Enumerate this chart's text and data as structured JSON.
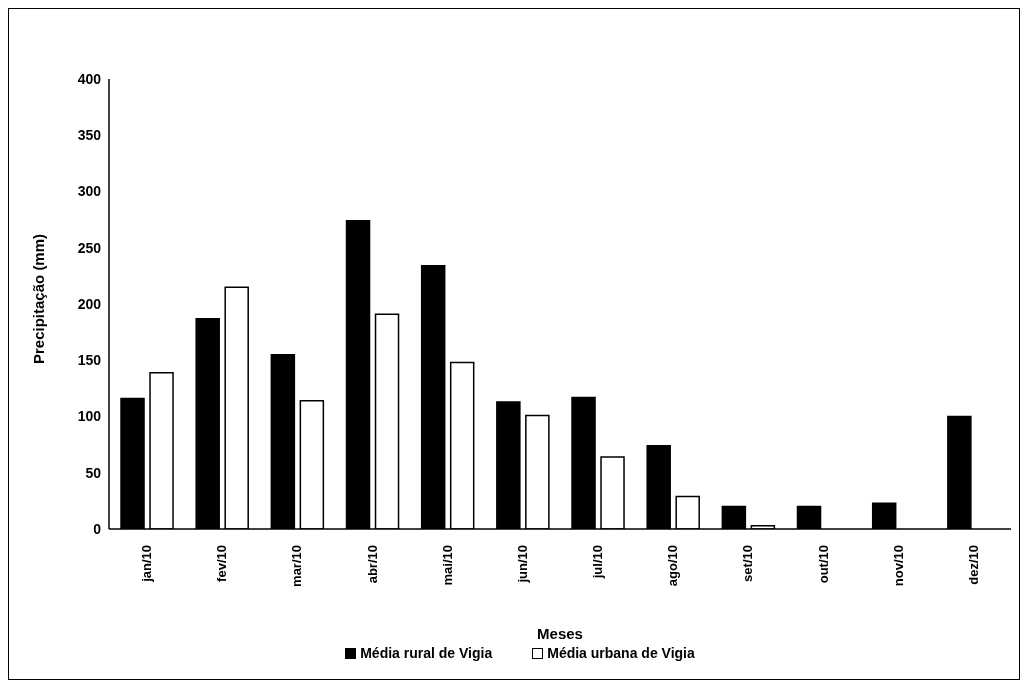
{
  "chart_data": {
    "type": "bar",
    "xlabel": "Meses",
    "ylabel": "Precipitação (mm)",
    "categories": [
      "jan/10",
      "fev/10",
      "mar/10",
      "abr/10",
      "mai/10",
      "jun/10",
      "jul/10",
      "ago/10",
      "set/10",
      "out/10",
      "nov/10",
      "dez/10"
    ],
    "series": [
      {
        "name": "Média rural de Vigia",
        "color": "#000000",
        "values": [
          116,
          187,
          155,
          274,
          234,
          113,
          117,
          74,
          20,
          20,
          23,
          100
        ]
      },
      {
        "name": "Média urbana de Vigia",
        "color": "#ffffff",
        "values": [
          139,
          215,
          114,
          191,
          148,
          101,
          64,
          29,
          3,
          0,
          0,
          0
        ]
      }
    ],
    "ylim": [
      0,
      400
    ],
    "yticks": [
      0,
      50,
      100,
      150,
      200,
      250,
      300,
      350,
      400
    ],
    "grid": false,
    "legend": "bottom"
  }
}
